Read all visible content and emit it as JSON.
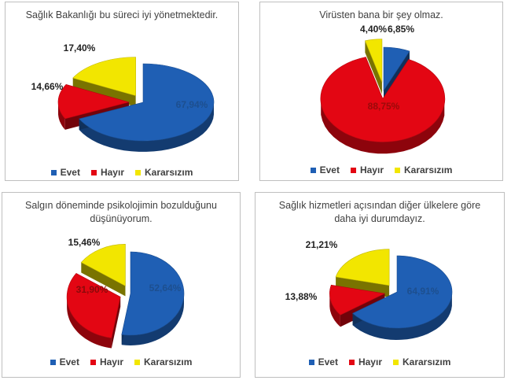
{
  "chart_data": [
    {
      "type": "pie",
      "title": "Sağlık Bakanlığı bu süreci iyi yönetmektedir.",
      "categories": [
        "Evet",
        "Hayır",
        "Kararsızım"
      ],
      "values": [
        67.94,
        14.66,
        17.4
      ],
      "labels": [
        "67,94%",
        "14,66%",
        "17,40%"
      ],
      "colors": [
        "#1f5fb4",
        "#e30613",
        "#f2e600"
      ],
      "legend": "bottom"
    },
    {
      "type": "pie",
      "title": "Virüsten bana bir şey olmaz.",
      "categories": [
        "Evet",
        "Hayır",
        "Kararsızım"
      ],
      "values": [
        6.85,
        88.75,
        4.4
      ],
      "labels": [
        "6,85%",
        "88,75%",
        "4,40%"
      ],
      "colors": [
        "#1f5fb4",
        "#e30613",
        "#f2e600"
      ],
      "legend": "bottom"
    },
    {
      "type": "pie",
      "title": "Salgın döneminde  psikolojimin bozulduğunu\ndüşünüyorum.",
      "categories": [
        "Evet",
        "Hayır",
        "Kararsızım"
      ],
      "values": [
        52.64,
        31.9,
        15.46
      ],
      "labels": [
        "52,64%",
        "31,90%",
        "15,46%"
      ],
      "colors": [
        "#1f5fb4",
        "#e30613",
        "#f2e600"
      ],
      "legend": "bottom"
    },
    {
      "type": "pie",
      "title": "Sağlık hizmetleri açısından diğer ülkelere göre\ndaha iyi durumdayız.",
      "categories": [
        "Evet",
        "Hayır",
        "Kararsızım"
      ],
      "values": [
        64.91,
        13.88,
        21.21
      ],
      "labels": [
        "64,91%",
        "13,88%",
        "21,21%"
      ],
      "colors": [
        "#1f5fb4",
        "#e30613",
        "#f2e600"
      ],
      "legend": "bottom"
    }
  ]
}
